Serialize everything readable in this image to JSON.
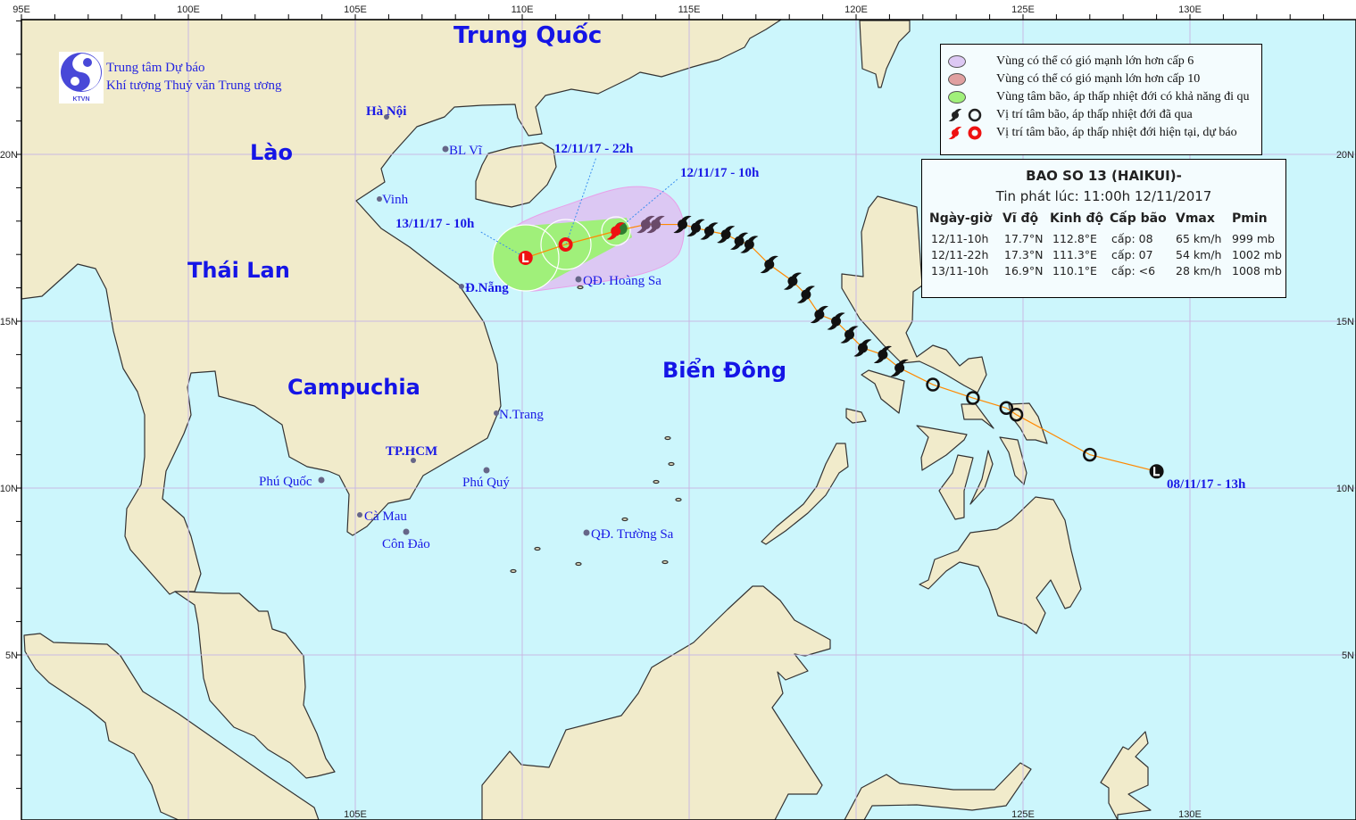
{
  "map": {
    "lon_labels": [
      "95E",
      "100E",
      "105E",
      "110E",
      "115E",
      "120E",
      "125E",
      "130E"
    ],
    "lat_labels": [
      "20N",
      "15N",
      "10N",
      "5N"
    ],
    "bottom_lon_labels": [
      "105E",
      "125E",
      "130E"
    ],
    "colors": {
      "sea": "#ccf6fc",
      "land": "#f1ebcb",
      "grid": "#c9b9e3",
      "label": "#1a1ae6",
      "past_track": "#111111",
      "forecast": "#ee1111",
      "track_line": "#ff8800",
      "cone_wind6": "#dcc8f3",
      "cone_center": "#a0f07a"
    }
  },
  "org": {
    "logo_text": "KTVN",
    "line1": "Trung tâm Dự báo",
    "line2": "Khí tượng Thuỷ văn Trung ương"
  },
  "countries": {
    "china": "Trung Quốc",
    "laos": "Lào",
    "thailand": "Thái Lan",
    "cambodia": "Campuchia",
    "east_sea": "Biển Đông"
  },
  "places": {
    "hanoi": "Hà Nội",
    "blvi": "BL Vĩ",
    "vinh": "Vinh",
    "danang": "Đ.Nẵng",
    "hoangsa": "QĐ. Hoàng Sa",
    "nhatrang": "N.Trang",
    "hcm": "TP.HCM",
    "phuquoc": "Phú Quốc",
    "phuquy": "Phú Quý",
    "camau": "Cà Mau",
    "condao": "Côn Đảo",
    "truongsa": "QĐ. Trường Sa"
  },
  "time_labels": {
    "current": "12/11/17 - 10h",
    "f12": "12/11/17 - 22h",
    "f24": "13/11/17 - 10h",
    "start": "08/11/17 - 13h"
  },
  "track": {
    "start_low": [
      129.0,
      10.5
    ],
    "past_depression": [
      [
        127.0,
        11.0
      ],
      [
        124.8,
        12.2
      ],
      [
        124.5,
        12.4
      ],
      [
        123.5,
        12.7
      ],
      [
        122.3,
        13.1
      ]
    ],
    "past_storm": [
      [
        121.3,
        13.6
      ],
      [
        120.8,
        14.0
      ],
      [
        120.2,
        14.2
      ],
      [
        119.8,
        14.6
      ],
      [
        119.4,
        15.0
      ],
      [
        118.9,
        15.2
      ],
      [
        118.5,
        15.8
      ],
      [
        118.1,
        16.2
      ],
      [
        117.4,
        16.7
      ],
      [
        116.8,
        17.3
      ],
      [
        116.5,
        17.4
      ],
      [
        116.1,
        17.6
      ],
      [
        115.6,
        17.7
      ],
      [
        115.2,
        17.8
      ],
      [
        114.8,
        17.9
      ],
      [
        114.0,
        17.9
      ],
      [
        113.7,
        17.9
      ]
    ],
    "current": [
      112.8,
      17.7
    ],
    "forecast": [
      [
        111.3,
        17.3
      ],
      [
        110.1,
        16.9
      ]
    ]
  },
  "legend": {
    "items": [
      {
        "icon": "wind-level-6-area",
        "color": "#dcc8f3",
        "label": "Vùng có thể có gió mạnh lớn hơn cấp 6"
      },
      {
        "icon": "wind-level-10-area",
        "color": "#e0a0a0",
        "label": "Vùng có thể có gió mạnh lớn hơn cấp 10"
      },
      {
        "icon": "storm-center-area",
        "color": "#a0f07a",
        "label": "Vùng tâm bão, áp thấp nhiệt đới có khả năng đi qu"
      },
      {
        "icon": "past-position",
        "color": "#222222",
        "label": "Vị trí tâm bão, áp thấp nhiệt đới đã qua"
      },
      {
        "icon": "current-forecast-position",
        "color": "#ee1111",
        "label": "Vị trí tâm bão, áp thấp nhiệt đới hiện tại, dự báo"
      }
    ]
  },
  "info": {
    "title": "BAO SO 13 (HAIKUI)-",
    "issued": "Tin phát lúc: 11:00h 12/11/2017",
    "headers": [
      "Ngày-giờ",
      "Vĩ độ",
      "Kinh độ",
      "Cấp bão",
      "Vmax",
      "Pmin"
    ],
    "rows": [
      [
        "12/11-10h",
        "17.7°N",
        "112.8°E",
        "cấp: 08",
        "65 km/h",
        "999 mb"
      ],
      [
        "12/11-22h",
        "17.3°N",
        "111.3°E",
        "cấp: 07",
        "54 km/h",
        "1002 mb"
      ],
      [
        "13/11-10h",
        "16.9°N",
        "110.1°E",
        "cấp: <6",
        "28 km/h",
        "1008 mb"
      ]
    ]
  }
}
